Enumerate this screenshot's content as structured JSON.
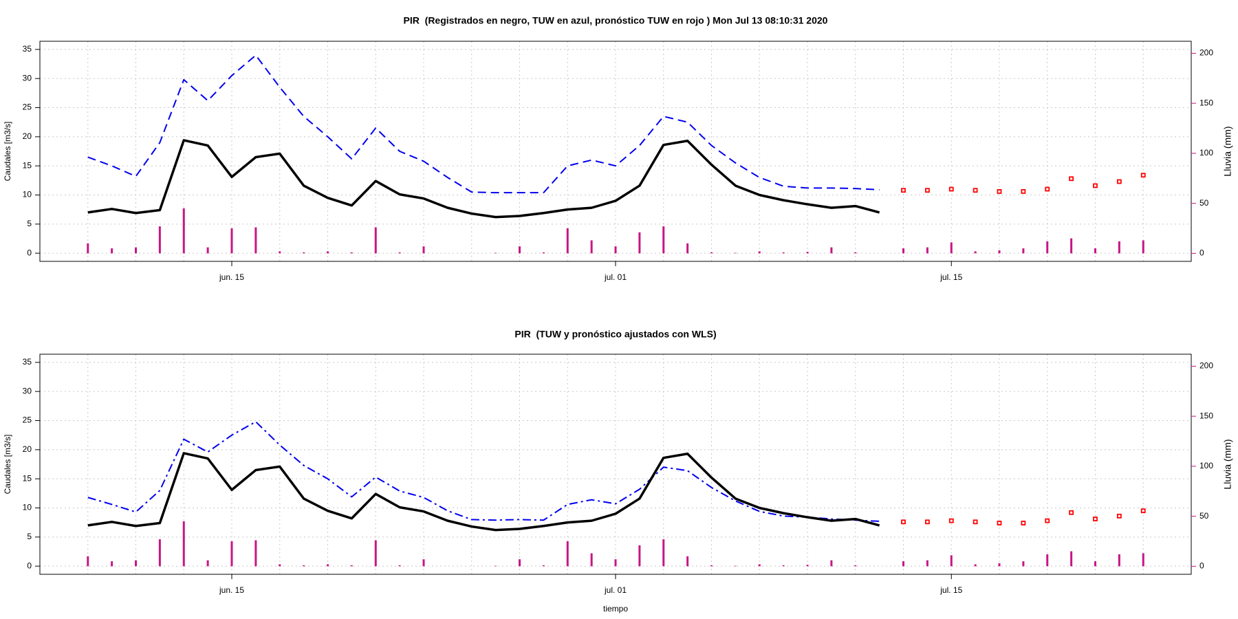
{
  "chart_data": [
    {
      "type": "line",
      "title": "PIR  (Registrados en negro, TUW en azul, pronóstico TUW en rojo ) Mon Jul 13 08:10:31 2020",
      "ylabel": "Caudales [m3/s]",
      "y2label": "Lluvia (mm)",
      "x": [
        "jun. 09",
        "jun. 10",
        "jun. 11",
        "jun. 12",
        "jun. 13",
        "jun. 14",
        "jun. 15",
        "jun. 16",
        "jun. 17",
        "jun. 18",
        "jun. 19",
        "jun. 20",
        "jun. 21",
        "jun. 22",
        "jun. 23",
        "jun. 24",
        "jun. 25",
        "jun. 26",
        "jun. 27",
        "jun. 28",
        "jun. 29",
        "jun. 30",
        "jul. 01",
        "jul. 02",
        "jul. 03",
        "jul. 04",
        "jul. 05",
        "jul. 06",
        "jul. 07",
        "jul. 08",
        "jul. 09",
        "jul. 10",
        "jul. 11",
        "jul. 12",
        "jul. 13",
        "jul. 14",
        "jul. 15",
        "jul. 16",
        "jul. 17",
        "jul. 18",
        "jul. 19",
        "jul. 20",
        "jul. 21",
        "jul. 22",
        "jul. 23"
      ],
      "xlim": [
        "jun. 07",
        "jul. 25"
      ],
      "xticks": [
        "jun. 15",
        "jul. 01",
        "jul. 15"
      ],
      "ylim": [
        -1.4,
        36.4
      ],
      "yticks": [
        0,
        5,
        10,
        15,
        20,
        25,
        30,
        35
      ],
      "y2lim": [
        -8,
        212
      ],
      "y2ticks": [
        0,
        50,
        100,
        150,
        200
      ],
      "y2color": "#c71585",
      "grid": true,
      "series": [
        {
          "mark": "bars",
          "axis": "y2",
          "color": "#c71585",
          "values": [
            10,
            5,
            6,
            27,
            45,
            6,
            25,
            26,
            2,
            1,
            2,
            1,
            26,
            1,
            7,
            0,
            0,
            0.5,
            7,
            1,
            25,
            13,
            7,
            21,
            27,
            10,
            1,
            0.5,
            2,
            1,
            1.5,
            6,
            1,
            0,
            5,
            6,
            11,
            2,
            3,
            5,
            12,
            15,
            5,
            12,
            13
          ]
        },
        {
          "mark": "line",
          "dash": "dashed",
          "width": 2,
          "color": "#0000ee",
          "values": [
            16.5,
            15.0,
            13.2,
            19.0,
            29.8,
            26.2,
            30.5,
            34.0,
            28.5,
            23.5,
            20.0,
            16.2,
            21.5,
            17.5,
            15.8,
            13.0,
            10.5,
            10.4,
            10.4,
            10.4,
            15.0,
            16.0,
            15.0,
            18.5,
            23.5,
            22.5,
            18.5,
            15.5,
            13.0,
            11.5,
            11.2,
            11.2,
            11.1,
            10.9,
            null,
            null,
            null,
            null,
            null,
            null,
            null,
            null,
            null,
            null,
            null
          ]
        },
        {
          "mark": "line",
          "dash": "solid",
          "width": 3.5,
          "color": "#000000",
          "values": [
            7.0,
            7.6,
            6.9,
            7.4,
            19.4,
            18.5,
            13.1,
            16.5,
            17.1,
            11.6,
            9.5,
            8.2,
            12.4,
            10.1,
            9.4,
            7.8,
            6.8,
            6.2,
            6.4,
            6.9,
            7.5,
            7.8,
            9.0,
            11.6,
            18.6,
            19.3,
            15.2,
            11.6,
            10.0,
            9.1,
            8.4,
            7.8,
            8.1,
            7.0,
            null,
            null,
            null,
            null,
            null,
            null,
            null,
            null,
            null,
            null,
            null
          ]
        },
        {
          "mark": "points",
          "color": "#ff0000",
          "values": [
            null,
            null,
            null,
            null,
            null,
            null,
            null,
            null,
            null,
            null,
            null,
            null,
            null,
            null,
            null,
            null,
            null,
            null,
            null,
            null,
            null,
            null,
            null,
            null,
            null,
            null,
            null,
            null,
            null,
            null,
            null,
            null,
            null,
            null,
            10.8,
            10.8,
            11.0,
            10.8,
            10.6,
            10.6,
            11.0,
            12.8,
            11.6,
            12.3,
            13.4
          ]
        }
      ]
    },
    {
      "type": "line",
      "title": "PIR  (TUW y pronóstico ajustados con WLS)",
      "xlabel": "tiempo",
      "ylabel": "Caudales [m3/s]",
      "y2label": "Lluvia (mm)",
      "x": [
        "jun. 09",
        "jun. 10",
        "jun. 11",
        "jun. 12",
        "jun. 13",
        "jun. 14",
        "jun. 15",
        "jun. 16",
        "jun. 17",
        "jun. 18",
        "jun. 19",
        "jun. 20",
        "jun. 21",
        "jun. 22",
        "jun. 23",
        "jun. 24",
        "jun. 25",
        "jun. 26",
        "jun. 27",
        "jun. 28",
        "jun. 29",
        "jun. 30",
        "jul. 01",
        "jul. 02",
        "jul. 03",
        "jul. 04",
        "jul. 05",
        "jul. 06",
        "jul. 07",
        "jul. 08",
        "jul. 09",
        "jul. 10",
        "jul. 11",
        "jul. 12",
        "jul. 13",
        "jul. 14",
        "jul. 15",
        "jul. 16",
        "jul. 17",
        "jul. 18",
        "jul. 19",
        "jul. 20",
        "jul. 21",
        "jul. 22",
        "jul. 23"
      ],
      "xlim": [
        "jun. 07",
        "jul. 25"
      ],
      "xticks": [
        "jun. 15",
        "jul. 01",
        "jul. 15"
      ],
      "ylim": [
        -1.4,
        36.4
      ],
      "yticks": [
        0,
        5,
        10,
        15,
        20,
        25,
        30,
        35
      ],
      "y2lim": [
        -8,
        212
      ],
      "y2ticks": [
        0,
        50,
        100,
        150,
        200
      ],
      "y2color": "#c71585",
      "grid": true,
      "series": [
        {
          "mark": "bars",
          "axis": "y2",
          "color": "#c71585",
          "values": [
            10,
            5,
            6,
            27,
            45,
            6,
            25,
            26,
            2,
            1,
            2,
            1,
            26,
            1,
            7,
            0,
            0,
            0.5,
            7,
            1,
            25,
            13,
            7,
            21,
            27,
            10,
            1,
            0.5,
            2,
            1,
            1.5,
            6,
            1,
            0,
            5,
            6,
            11,
            2,
            3,
            5,
            12,
            15,
            5,
            12,
            13
          ]
        },
        {
          "mark": "line",
          "dash": "dashdot",
          "width": 2,
          "color": "#0000ee",
          "values": [
            11.8,
            10.6,
            9.3,
            13.0,
            21.8,
            19.6,
            22.5,
            24.8,
            20.8,
            17.3,
            15.0,
            11.9,
            15.3,
            12.9,
            11.8,
            9.5,
            8.0,
            7.9,
            8.0,
            7.9,
            10.6,
            11.4,
            10.7,
            13.2,
            17.0,
            16.4,
            13.5,
            11.2,
            9.4,
            8.6,
            8.4,
            8.1,
            7.9,
            7.7,
            null,
            null,
            null,
            null,
            null,
            null,
            null,
            null,
            null,
            null,
            null
          ]
        },
        {
          "mark": "line",
          "dash": "solid",
          "width": 3.5,
          "color": "#000000",
          "values": [
            7.0,
            7.6,
            6.9,
            7.4,
            19.4,
            18.5,
            13.1,
            16.5,
            17.1,
            11.6,
            9.5,
            8.2,
            12.4,
            10.1,
            9.4,
            7.8,
            6.8,
            6.2,
            6.4,
            6.9,
            7.5,
            7.8,
            9.0,
            11.6,
            18.6,
            19.3,
            15.2,
            11.6,
            10.0,
            9.1,
            8.4,
            7.8,
            8.1,
            7.0,
            null,
            null,
            null,
            null,
            null,
            null,
            null,
            null,
            null,
            null,
            null
          ]
        },
        {
          "mark": "points",
          "color": "#ff0000",
          "values": [
            null,
            null,
            null,
            null,
            null,
            null,
            null,
            null,
            null,
            null,
            null,
            null,
            null,
            null,
            null,
            null,
            null,
            null,
            null,
            null,
            null,
            null,
            null,
            null,
            null,
            null,
            null,
            null,
            null,
            null,
            null,
            null,
            null,
            null,
            7.6,
            7.6,
            7.8,
            7.6,
            7.4,
            7.4,
            7.8,
            9.2,
            8.1,
            8.6,
            9.5
          ]
        }
      ]
    }
  ]
}
